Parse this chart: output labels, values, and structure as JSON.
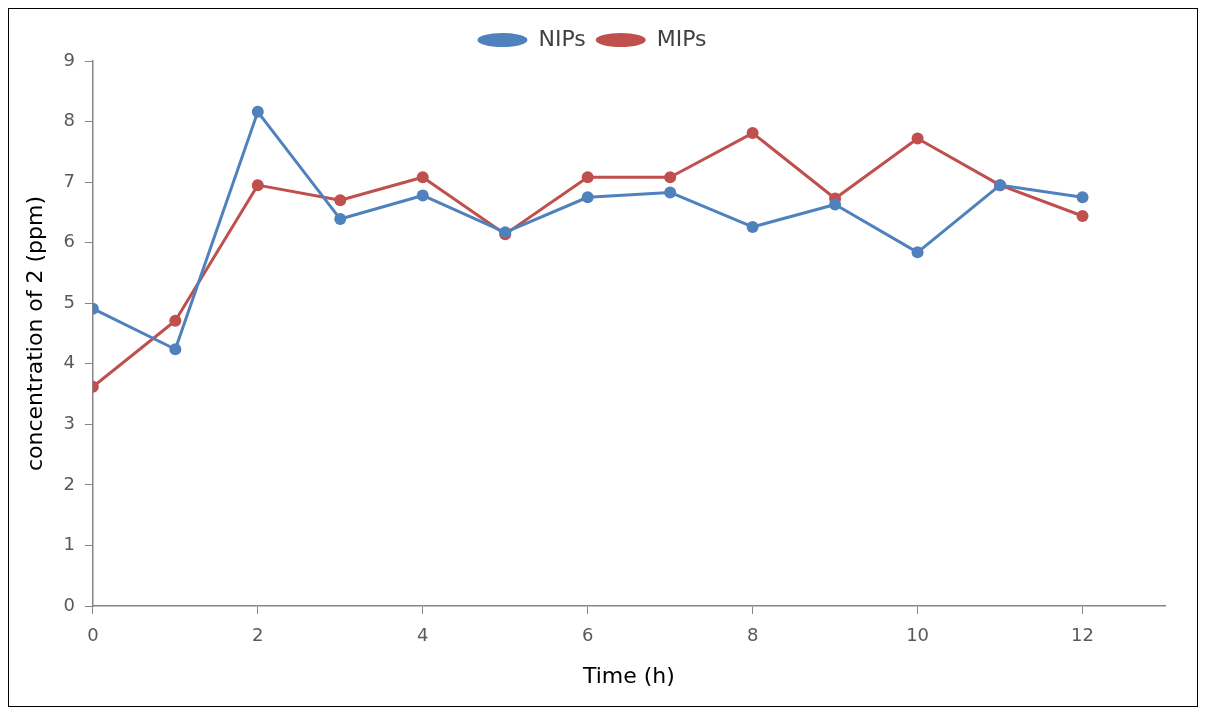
{
  "chart_data": {
    "type": "line",
    "xlabel": "Time (h)",
    "ylabel": "concentration of 2 (ppm)",
    "x": [
      0,
      1,
      2,
      3,
      4,
      5,
      6,
      7,
      8,
      9,
      10,
      11,
      12
    ],
    "series": [
      {
        "name": "NIPs",
        "color": "#4f81bd",
        "values": [
          4.91,
          4.24,
          8.16,
          6.39,
          6.78,
          6.17,
          6.75,
          6.83,
          6.26,
          6.63,
          5.84,
          6.95,
          6.75
        ]
      },
      {
        "name": "MIPs",
        "color": "#c0504d",
        "values": [
          3.62,
          4.71,
          6.95,
          6.7,
          7.08,
          6.14,
          7.08,
          7.08,
          7.81,
          6.73,
          7.72,
          6.95,
          6.44
        ]
      }
    ],
    "xlim": [
      0,
      13
    ],
    "xticks": [
      0,
      2,
      4,
      6,
      8,
      10,
      12
    ],
    "ylim": [
      0,
      9
    ],
    "yticks": [
      0,
      1,
      2,
      3,
      4,
      5,
      6,
      7,
      8,
      9
    ],
    "grid": false,
    "legend": "top",
    "marker": "circle",
    "line_style": "solid"
  }
}
